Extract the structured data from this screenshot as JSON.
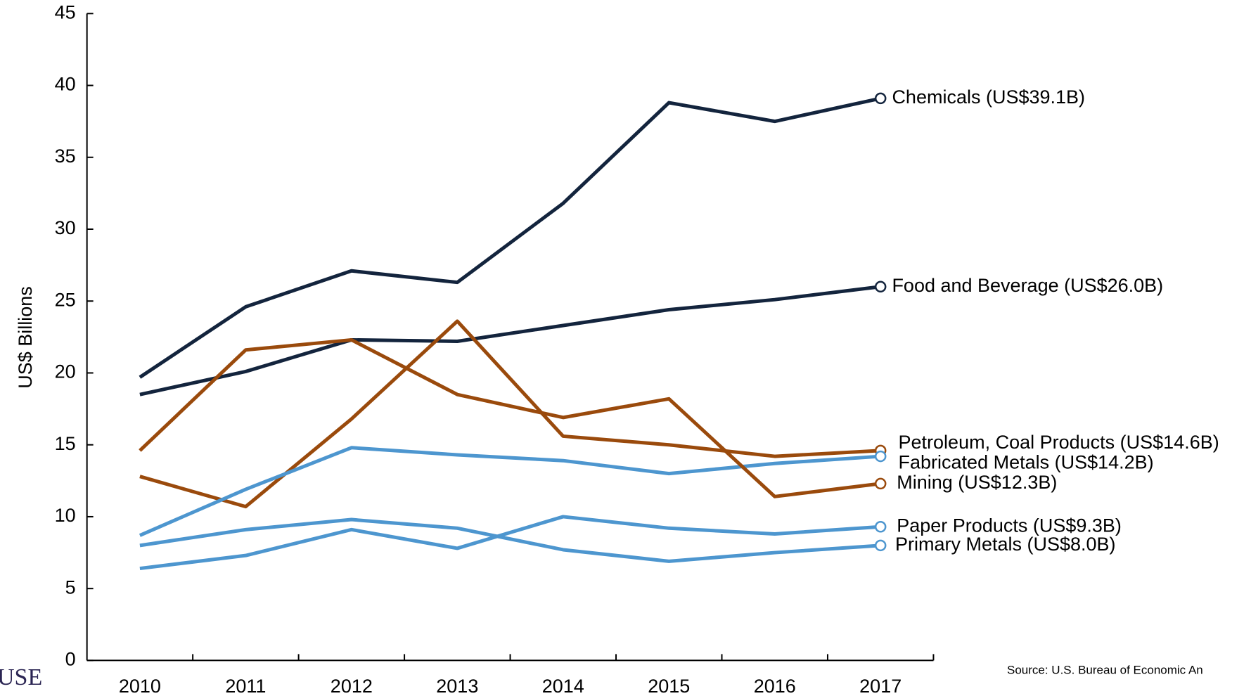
{
  "chart_data": {
    "type": "line",
    "y_label": "US$ Billions",
    "source": "Source: U.S. Bureau of Economic An",
    "logo": "USE",
    "categories": [
      "2010",
      "2011",
      "2012",
      "2013",
      "2014",
      "2015",
      "2016",
      "2017"
    ],
    "ylim": [
      0,
      45
    ],
    "yticks": [
      0,
      5,
      10,
      15,
      20,
      25,
      30,
      35,
      40,
      45
    ],
    "series": [
      {
        "name": "Chemicals (US$39.1B)",
        "color": "#13243d",
        "values": [
          19.7,
          24.6,
          27.1,
          26.3,
          31.8,
          38.8,
          37.5,
          39.1
        ]
      },
      {
        "name": "Food and Beverage (US$26.0B)",
        "color": "#13243d",
        "values": [
          18.5,
          20.1,
          22.3,
          22.2,
          23.3,
          24.4,
          25.1,
          26.0
        ]
      },
      {
        "name": "Petroleum, Coal Products (US$14.6B)",
        "color": "#9a4a0c",
        "values": [
          12.8,
          10.7,
          16.8,
          23.6,
          15.6,
          15.0,
          14.2,
          14.6
        ]
      },
      {
        "name": "Fabricated Metals (US$14.2B)",
        "color": "#4d96cf",
        "values": [
          8.7,
          11.9,
          14.8,
          14.3,
          13.9,
          13.0,
          13.7,
          14.2
        ]
      },
      {
        "name": "Mining (US$12.3B)",
        "color": "#9a4a0c",
        "values": [
          14.6,
          21.6,
          22.3,
          18.5,
          16.9,
          18.2,
          11.4,
          12.3
        ]
      },
      {
        "name": "Paper Products (US$9.3B)",
        "color": "#4d96cf",
        "values": [
          6.4,
          7.3,
          9.1,
          7.8,
          10.0,
          9.2,
          8.8,
          9.3
        ]
      },
      {
        "name": "Primary Metals (US$8.0B)",
        "color": "#4d96cf",
        "values": [
          8.0,
          9.1,
          9.8,
          9.2,
          7.7,
          6.9,
          7.5,
          8.0
        ]
      }
    ]
  }
}
